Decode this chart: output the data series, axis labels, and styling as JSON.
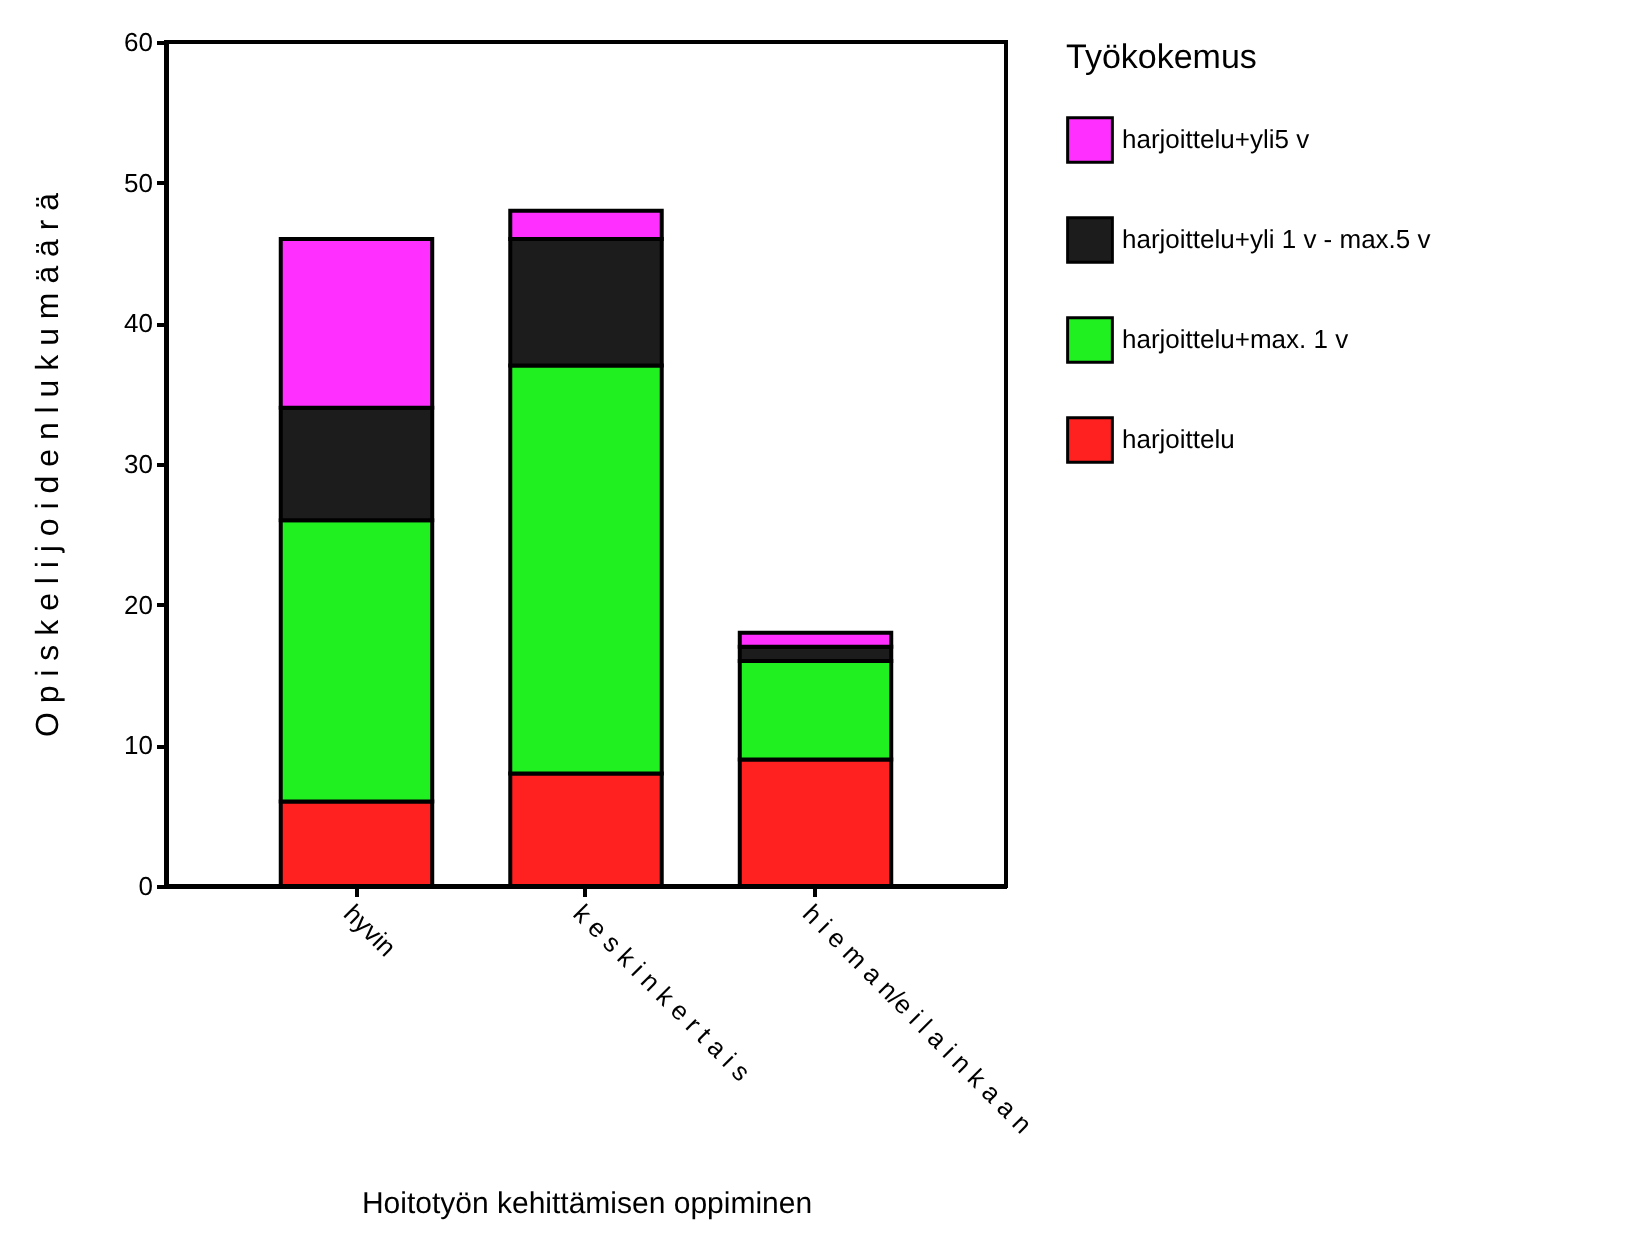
{
  "chart_data": {
    "type": "bar",
    "stacked": true,
    "xlabel": "Hoitotyön kehittämisen oppiminen",
    "ylabel": "O p i s k e l i j o i d e n   l u k u m ä ä r ä",
    "legend_title": "Työkokemus",
    "legend": "right",
    "categories": [
      "hyvin",
      "k e s k i n k e r t a i s",
      "h i e m a n/e i l a i n k a a n"
    ],
    "ylim": [
      0,
      60
    ],
    "yticks": [
      0,
      10,
      20,
      30,
      40,
      50,
      60
    ],
    "series": [
      {
        "name": "harjoittelu",
        "color": "#ff2020",
        "values": [
          6,
          8,
          9
        ]
      },
      {
        "name": "harjoittelu+max. 1 v",
        "color": "#20f020",
        "values": [
          20,
          29,
          7
        ]
      },
      {
        "name": "harjoittelu+yli 1 v - max.5 v",
        "color": "#1c1c1c",
        "values": [
          8,
          9,
          1
        ]
      },
      {
        "name": "harjoittelu+yli5 v",
        "color": "#ff30ff",
        "values": [
          12,
          2,
          1
        ]
      }
    ]
  }
}
